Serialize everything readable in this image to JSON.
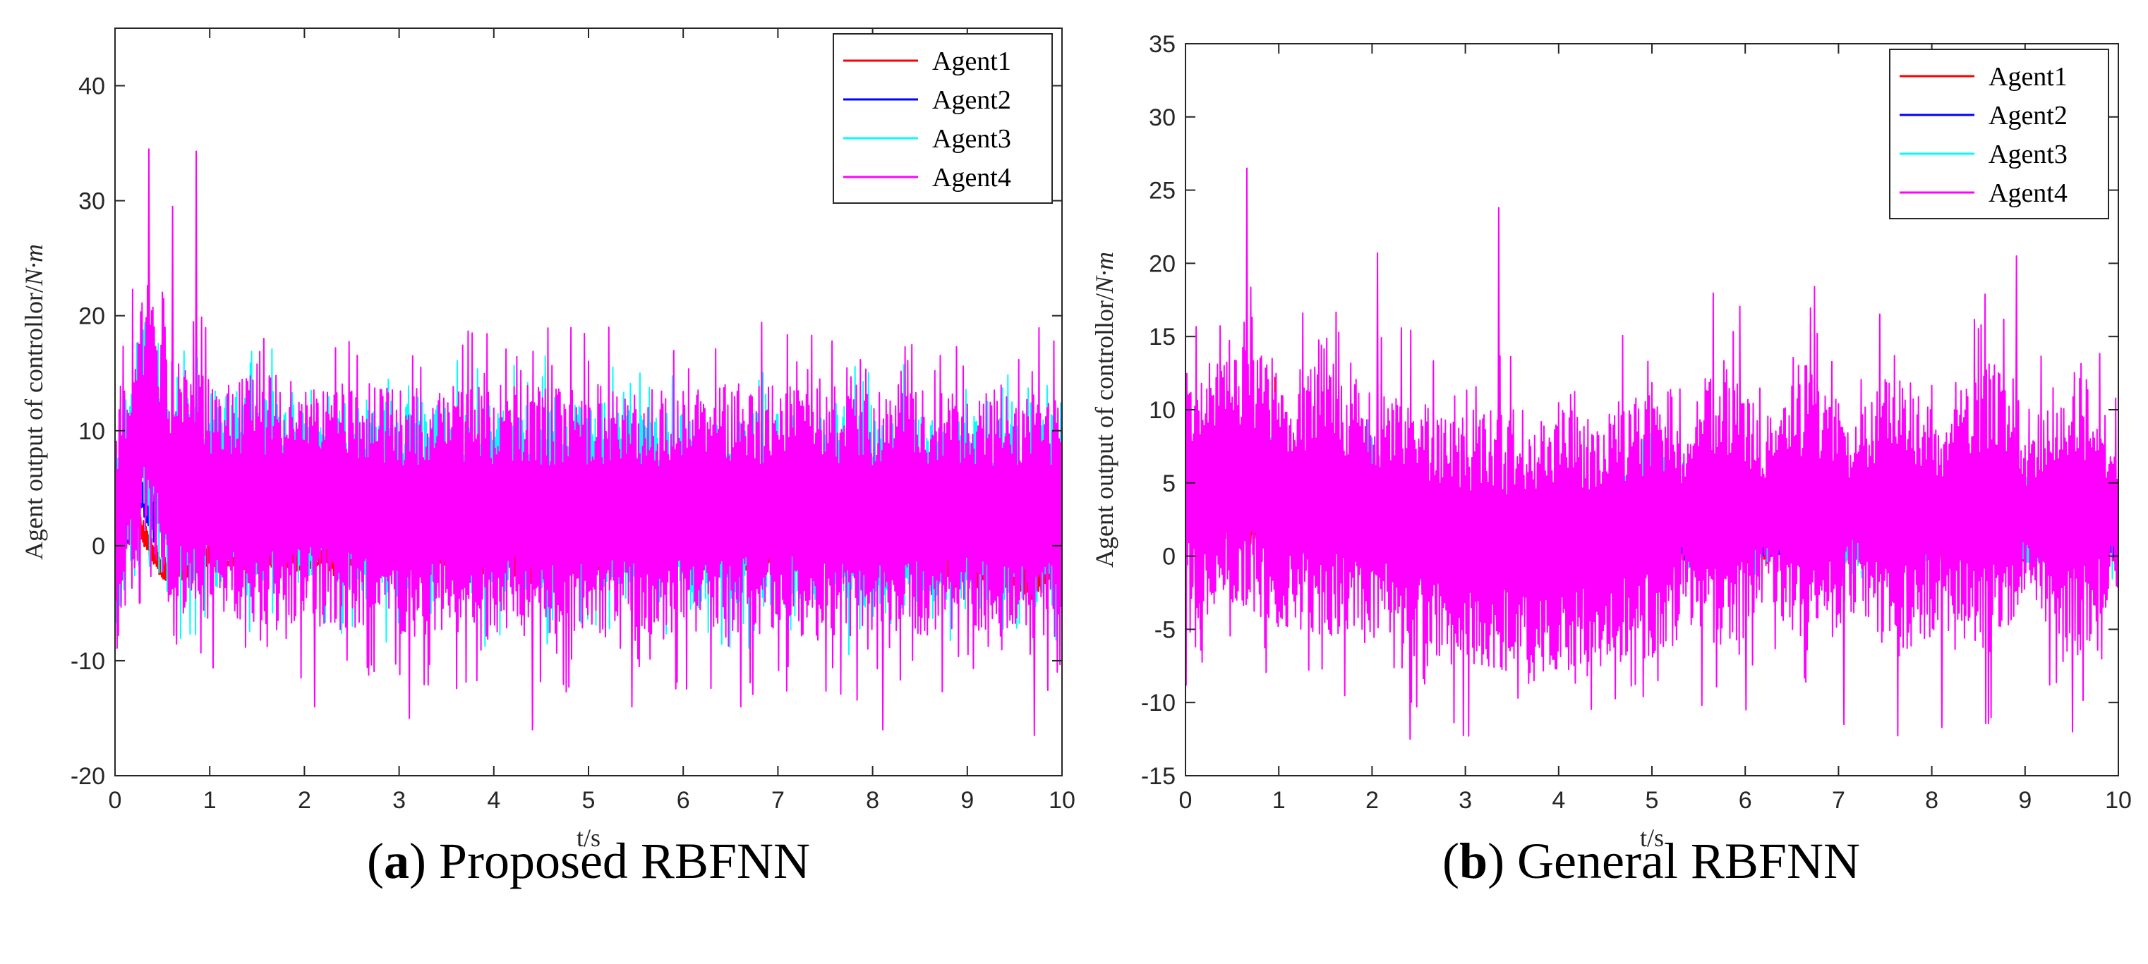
{
  "chart_data": [
    {
      "type": "line",
      "caption_letter": "a",
      "caption_text": ") Proposed RBFNN",
      "caption_open": "(",
      "xlabel": "t/s",
      "ylabel_prefix": "Agent output of controllor/",
      "ylabel_unit": "N·m",
      "xlim": [
        0,
        10
      ],
      "ylim": [
        -20,
        45
      ],
      "xticks": [
        0,
        1,
        2,
        3,
        4,
        5,
        6,
        7,
        8,
        9,
        10
      ],
      "yticks": [
        -20,
        -10,
        0,
        10,
        20,
        30,
        40
      ],
      "legend": {
        "position": "top-right",
        "entries": [
          "Agent1",
          "Agent2",
          "Agent3",
          "Agent4"
        ]
      },
      "series": [
        {
          "name": "Agent1",
          "color": "#ff0000",
          "style": "red",
          "keyframes": [
            [
              0,
              1.5
            ],
            [
              0.3,
              1
            ],
            [
              0.5,
              -2
            ],
            [
              0.8,
              -2
            ],
            [
              1,
              -1
            ],
            [
              2,
              -1
            ],
            [
              3,
              -1
            ],
            [
              4,
              -1
            ],
            [
              4.5,
              -2
            ],
            [
              5,
              -1
            ],
            [
              6,
              -1
            ],
            [
              7,
              -1
            ],
            [
              8,
              -1
            ],
            [
              9,
              -2
            ],
            [
              9.5,
              -3
            ],
            [
              9.8,
              -3
            ],
            [
              10,
              -1
            ]
          ],
          "amplitude": 1.2,
          "seed": 11
        },
        {
          "name": "Agent2",
          "color": "#0000ff",
          "style": "navy",
          "keyframes": [
            [
              0,
              1.5
            ],
            [
              0.15,
              2
            ],
            [
              0.25,
              5
            ],
            [
              0.4,
              3
            ],
            [
              0.7,
              6
            ],
            [
              1,
              7
            ],
            [
              2,
              6
            ],
            [
              3,
              5
            ],
            [
              4,
              4
            ],
            [
              5,
              6
            ],
            [
              6,
              5
            ],
            [
              7,
              5
            ],
            [
              8,
              4
            ],
            [
              9,
              4
            ],
            [
              10,
              5
            ]
          ],
          "amplitude": 2.0,
          "seed": 22
        },
        {
          "name": "Agent3",
          "color": "#00ffff",
          "style": "cyan",
          "keyframes": [
            [
              0,
              1
            ],
            [
              0.2,
              8
            ],
            [
              0.3,
              12
            ],
            [
              0.5,
              4
            ],
            [
              1,
              5
            ],
            [
              2,
              5
            ],
            [
              3,
              4
            ],
            [
              4,
              4
            ],
            [
              5,
              4
            ],
            [
              6,
              3
            ],
            [
              7,
              3
            ],
            [
              8,
              3
            ],
            [
              9,
              3
            ],
            [
              10,
              3
            ]
          ],
          "amplitude": 8.5,
          "seed": 33
        },
        {
          "name": "Agent4",
          "color": "#ff00ff",
          "style": "magenta",
          "keyframes": [
            [
              0,
              1
            ],
            [
              0.2,
              8
            ],
            [
              0.35,
              12
            ],
            [
              0.6,
              5
            ],
            [
              1,
              4
            ],
            [
              2,
              4
            ],
            [
              3,
              3
            ],
            [
              4,
              3
            ],
            [
              5,
              3
            ],
            [
              6,
              3
            ],
            [
              7,
              3
            ],
            [
              8,
              3
            ],
            [
              9,
              3
            ],
            [
              10,
              3
            ]
          ],
          "amplitude": 11,
          "seed": 44,
          "spikes": [
            [
              0.35,
              34.5
            ],
            [
              0.85,
              34.3
            ],
            [
              0.6,
              29.5
            ],
            [
              0.25,
              -5
            ],
            [
              3.1,
              -15
            ],
            [
              4.4,
              -16
            ],
            [
              9.7,
              -16.5
            ],
            [
              8.1,
              -16
            ],
            [
              6.6,
              -14
            ],
            [
              2.1,
              -14
            ],
            [
              5.45,
              -14
            ]
          ]
        }
      ]
    },
    {
      "type": "line",
      "caption_letter": "b",
      "caption_text": ") General RBFNN",
      "caption_open": "(",
      "xlabel": "t/s",
      "ylabel_prefix": "Agent output of controllor/",
      "ylabel_unit": "N·m",
      "xlim": [
        0,
        10
      ],
      "ylim": [
        -15,
        35
      ],
      "xticks": [
        0,
        1,
        2,
        3,
        4,
        5,
        6,
        7,
        8,
        9,
        10
      ],
      "yticks": [
        -15,
        -10,
        -5,
        0,
        5,
        10,
        15,
        20,
        25,
        30,
        35
      ],
      "legend": {
        "position": "top-right",
        "entries": [
          "Agent1",
          "Agent2",
          "Agent3",
          "Agent4"
        ]
      },
      "series": [
        {
          "name": "Agent1",
          "color": "#ff0000",
          "style": "red",
          "keyframes": [
            [
              0,
              2
            ],
            [
              0.5,
              2
            ],
            [
              1,
              2
            ],
            [
              2,
              1.5
            ],
            [
              2.5,
              1
            ],
            [
              3,
              0.5
            ],
            [
              4,
              0.5
            ],
            [
              5,
              1
            ],
            [
              6,
              1
            ],
            [
              7,
              1
            ],
            [
              8,
              1
            ],
            [
              9,
              1
            ],
            [
              10,
              1
            ]
          ],
          "amplitude": 1.5,
          "seed": 55,
          "spikes": [
            [
              0.95,
              12.2
            ],
            [
              0.1,
              -4
            ]
          ]
        },
        {
          "name": "Agent2",
          "color": "#0000ff",
          "style": "navy",
          "keyframes": [
            [
              0,
              3
            ],
            [
              0.3,
              4
            ],
            [
              0.8,
              3
            ],
            [
              1.2,
              1.5
            ],
            [
              1.8,
              2
            ],
            [
              2,
              5
            ],
            [
              2.2,
              0.5
            ],
            [
              3,
              0.5
            ],
            [
              4,
              0.5
            ],
            [
              5,
              0.5
            ],
            [
              6,
              0.5
            ],
            [
              7,
              0.5
            ],
            [
              8,
              0.5
            ],
            [
              9,
              0.5
            ],
            [
              10,
              0.5
            ]
          ],
          "amplitude": 0.6,
          "seed": 66
        },
        {
          "name": "Agent3",
          "color": "#00ffff",
          "style": "cyan",
          "keyframes": [
            [
              0,
              3
            ],
            [
              0.5,
              6
            ],
            [
              0.9,
              5
            ],
            [
              1.2,
              2
            ],
            [
              1.8,
              4
            ],
            [
              2,
              6
            ],
            [
              2.2,
              0.5
            ],
            [
              3,
              1
            ],
            [
              4,
              1
            ],
            [
              5,
              5
            ],
            [
              5.3,
              3
            ],
            [
              6,
              2
            ],
            [
              7,
              2
            ],
            [
              8,
              2
            ],
            [
              9,
              2
            ],
            [
              10,
              2
            ]
          ],
          "amplitude": 2.5,
          "seed": 77
        },
        {
          "name": "Agent4",
          "color": "#ff00ff",
          "style": "magenta",
          "keyframes": [
            [
              0,
              4
            ],
            [
              0.5,
              6
            ],
            [
              1,
              4
            ],
            [
              2,
              3
            ],
            [
              3,
              1
            ],
            [
              4,
              1
            ],
            [
              5,
              2
            ],
            [
              5.4,
              3
            ],
            [
              5.6,
              3
            ],
            [
              6,
              3
            ],
            [
              7,
              3
            ],
            [
              8,
              3
            ],
            [
              9,
              3
            ],
            [
              10,
              3
            ]
          ],
          "amplitude": 9,
          "seed": 88,
          "envelope": true,
          "spikes": [
            [
              0.65,
              26.5
            ],
            [
              3.35,
              23.8
            ],
            [
              2.05,
              20.7
            ],
            [
              8.9,
              20.5
            ],
            [
              2.4,
              -12.5
            ],
            [
              0.15,
              -5
            ],
            [
              6,
              -10.5
            ],
            [
              7.05,
              -11.5
            ],
            [
              8.1,
              -11.7
            ],
            [
              9.5,
              -12
            ]
          ]
        }
      ]
    }
  ]
}
